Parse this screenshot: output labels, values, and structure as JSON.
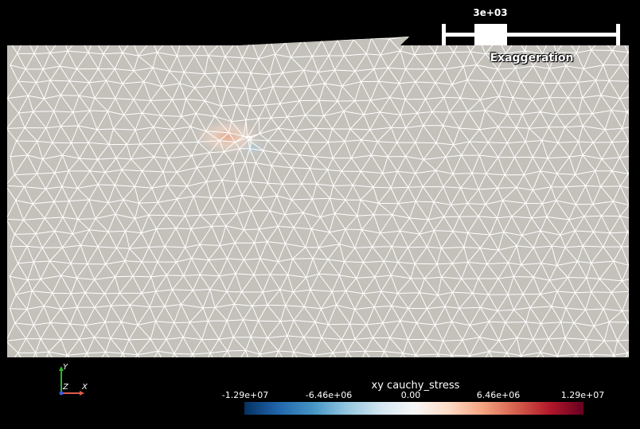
{
  "slider": {
    "value": "3e+03",
    "title": "Exaggeration"
  },
  "axes": {
    "x_label": "X",
    "y_label": "Y",
    "z_label": "Z"
  },
  "legend": {
    "title": "xy cauchy_stress",
    "ticks": [
      "-1.29e+07",
      "-6.46e+06",
      "0.00",
      "6.46e+06",
      "1.29e+07"
    ],
    "colormap": [
      "#053061",
      "#2166ac",
      "#4393c3",
      "#92c5de",
      "#d1e5f0",
      "#f7f7f7",
      "#fddbc7",
      "#f4a582",
      "#d6604d",
      "#b2182b",
      "#67001f"
    ]
  },
  "mesh": {
    "fill_color": "#c4c1bb",
    "line_color": "#ffffff",
    "background": "#000000"
  }
}
